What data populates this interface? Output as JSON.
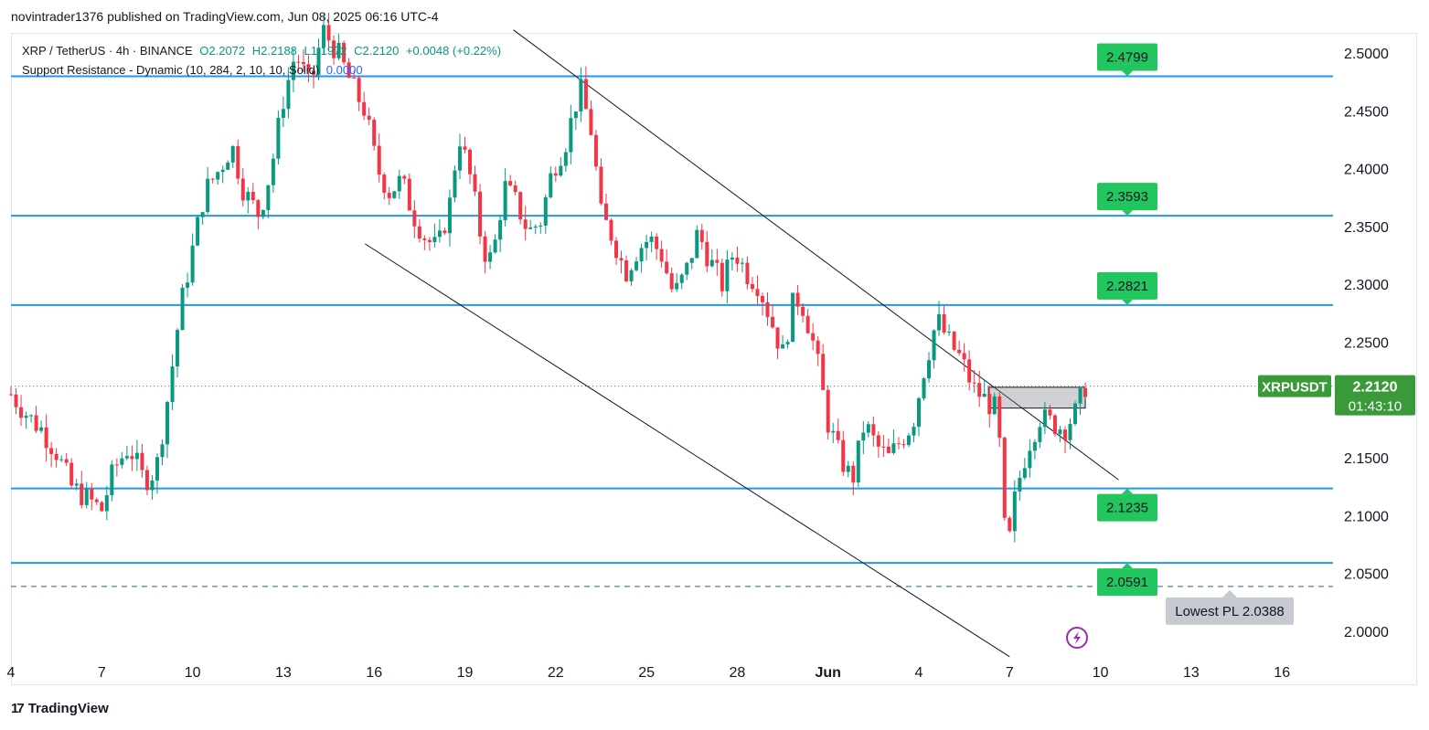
{
  "header": {
    "publish_line": "novintrader1376 published on TradingView.com, Jun 08, 2025 06:16 UTC-4"
  },
  "legend": {
    "symbol_line": "XRP / TetherUS · 4h · BINANCE",
    "open": "O2.2072",
    "high": "H2.2188",
    "low": "L1.1972",
    "close": "C2.2120",
    "change": "+0.0048 (+0.22%)",
    "indicator": "Support Resistance - Dynamic (10, 284, 2, 10, 10, Solid)",
    "indicator_value": "0.0000"
  },
  "footer": {
    "brand": "TradingView"
  },
  "colors": {
    "up": "#089981",
    "down": "#f23645",
    "level": "#2196f3",
    "badge": "#22c55e",
    "price_tag": "#3a9a3a"
  },
  "chart_data": {
    "type": "candlestick",
    "symbol": "XRPUSDT",
    "timeframe": "4h",
    "ylim": [
      1.97,
      2.52
    ],
    "y_ticks": [
      "2.5000",
      "2.4500",
      "2.4000",
      "2.3500",
      "2.3000",
      "2.2500",
      "2.2000",
      "2.1500",
      "2.1000",
      "2.0500",
      "2.0000"
    ],
    "x_ticks": [
      {
        "label": "4",
        "day": 0
      },
      {
        "label": "7",
        "day": 3
      },
      {
        "label": "10",
        "day": 6
      },
      {
        "label": "13",
        "day": 9
      },
      {
        "label": "16",
        "day": 12
      },
      {
        "label": "19",
        "day": 15
      },
      {
        "label": "22",
        "day": 18
      },
      {
        "label": "25",
        "day": 21
      },
      {
        "label": "28",
        "day": 24
      },
      {
        "label": "Jun",
        "day": 27
      },
      {
        "label": "4",
        "day": 30
      },
      {
        "label": "7",
        "day": 33
      },
      {
        "label": "10",
        "day": 36
      },
      {
        "label": "13",
        "day": 39
      },
      {
        "label": "16",
        "day": 42
      }
    ],
    "resistance_levels": [
      {
        "value": 2.4799,
        "label": "2.4799"
      },
      {
        "value": 2.3593,
        "label": "2.3593"
      },
      {
        "value": 2.2821,
        "label": "2.2821"
      },
      {
        "value": 2.1235,
        "label": "2.1235"
      },
      {
        "value": 2.0591,
        "label": "2.0591"
      }
    ],
    "lowest_pl": {
      "value": 2.0388,
      "label": "Lowest PL 2.0388"
    },
    "current_price": {
      "value": 2.212,
      "label": "2.2120",
      "symbol_tag": "XRPUSDT",
      "countdown": "01:43:10"
    },
    "trendlines": [
      {
        "from": {
          "day": 16.6,
          "price": 2.52
        },
        "to": {
          "day": 36.6,
          "price": 2.131
        }
      },
      {
        "from": {
          "day": 11.7,
          "price": 2.335
        },
        "to": {
          "day": 33.0,
          "price": 1.978
        }
      }
    ],
    "zone": {
      "day_start": 32.3,
      "day_end": 35.5,
      "price_top": 2.211,
      "price_bottom": 2.193
    },
    "path_points": [
      [
        0.0,
        2.205
      ],
      [
        0.6,
        2.185
      ],
      [
        1.0,
        2.175
      ],
      [
        1.5,
        2.155
      ],
      [
        2.0,
        2.125
      ],
      [
        2.5,
        2.115
      ],
      [
        3.0,
        2.105
      ],
      [
        3.4,
        2.14
      ],
      [
        3.9,
        2.16
      ],
      [
        4.4,
        2.13
      ],
      [
        4.8,
        2.14
      ],
      [
        5.2,
        2.205
      ],
      [
        5.6,
        2.28
      ],
      [
        6.0,
        2.33
      ],
      [
        6.4,
        2.38
      ],
      [
        6.9,
        2.4
      ],
      [
        7.3,
        2.42
      ],
      [
        7.7,
        2.38
      ],
      [
        8.2,
        2.36
      ],
      [
        8.6,
        2.4
      ],
      [
        9.0,
        2.46
      ],
      [
        9.4,
        2.5
      ],
      [
        9.9,
        2.47
      ],
      [
        10.3,
        2.52
      ],
      [
        10.8,
        2.5
      ],
      [
        11.3,
        2.47
      ],
      [
        11.7,
        2.45
      ],
      [
        12.1,
        2.4
      ],
      [
        12.5,
        2.38
      ],
      [
        12.9,
        2.39
      ],
      [
        13.3,
        2.36
      ],
      [
        13.7,
        2.34
      ],
      [
        14.1,
        2.33
      ],
      [
        14.5,
        2.37
      ],
      [
        14.8,
        2.43
      ],
      [
        15.2,
        2.39
      ],
      [
        15.6,
        2.33
      ],
      [
        15.9,
        2.32
      ],
      [
        16.3,
        2.385
      ],
      [
        16.7,
        2.37
      ],
      [
        17.1,
        2.345
      ],
      [
        17.5,
        2.355
      ],
      [
        17.9,
        2.4
      ],
      [
        18.3,
        2.42
      ],
      [
        18.8,
        2.47
      ],
      [
        19.2,
        2.43
      ],
      [
        19.5,
        2.36
      ],
      [
        19.9,
        2.34
      ],
      [
        20.3,
        2.31
      ],
      [
        20.7,
        2.33
      ],
      [
        21.1,
        2.34
      ],
      [
        21.5,
        2.325
      ],
      [
        21.9,
        2.29
      ],
      [
        22.3,
        2.31
      ],
      [
        22.7,
        2.345
      ],
      [
        23.1,
        2.32
      ],
      [
        23.5,
        2.3
      ],
      [
        23.9,
        2.33
      ],
      [
        24.3,
        2.31
      ],
      [
        24.7,
        2.3
      ],
      [
        25.1,
        2.27
      ],
      [
        25.5,
        2.24
      ],
      [
        25.9,
        2.29
      ],
      [
        26.2,
        2.28
      ],
      [
        26.6,
        2.24
      ],
      [
        27.0,
        2.18
      ],
      [
        27.4,
        2.15
      ],
      [
        27.8,
        2.13
      ],
      [
        28.2,
        2.18
      ],
      [
        28.6,
        2.16
      ],
      [
        29.0,
        2.15
      ],
      [
        29.4,
        2.165
      ],
      [
        29.8,
        2.18
      ],
      [
        30.2,
        2.23
      ],
      [
        30.6,
        2.27
      ],
      [
        31.0,
        2.25
      ],
      [
        31.4,
        2.235
      ],
      [
        31.8,
        2.21
      ],
      [
        32.2,
        2.2
      ],
      [
        32.6,
        2.19
      ],
      [
        32.9,
        2.06
      ],
      [
        33.2,
        2.12
      ],
      [
        33.6,
        2.16
      ],
      [
        34.0,
        2.185
      ],
      [
        34.4,
        2.18
      ],
      [
        34.8,
        2.175
      ],
      [
        35.2,
        2.19
      ],
      [
        35.5,
        2.212
      ]
    ]
  }
}
